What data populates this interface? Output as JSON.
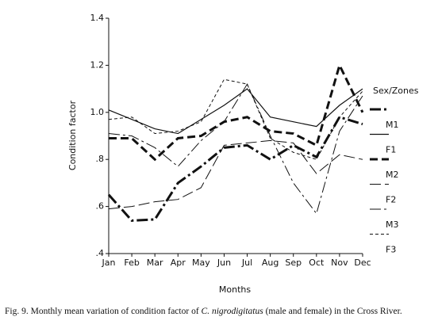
{
  "chart_data": {
    "type": "line",
    "y_label": "Condition factor",
    "x_label": "Months",
    "legend_title": "Sex/Zones",
    "legend_position": "right",
    "caption": {
      "before": "Fig. 9. Monthly mean variation of condition factor of ",
      "species": "C. nigrodigitatus",
      "after": " (male and female) in the Cross River."
    },
    "categories": [
      "Jan",
      "Feb",
      "Mar",
      "Apr",
      "May",
      "Jun",
      "Jul",
      "Aug",
      "Sep",
      "Oct",
      "Nov",
      "Dec"
    ],
    "ylim": [
      0.4,
      1.4
    ],
    "yticks": [
      {
        "value": 0.4,
        "label": ".4"
      },
      {
        "value": 0.6,
        "label": ".6"
      },
      {
        "value": 0.8,
        "label": ".8"
      },
      {
        "value": 1,
        "label": "1.0"
      },
      1.2,
      1.4
    ],
    "series": [
      {
        "name": "M1",
        "color": "#111111",
        "linestyle": "dashdot",
        "linewidth": 3,
        "values": [
          0.65,
          0.54,
          0.545,
          0.7,
          0.77,
          0.85,
          0.86,
          0.8,
          0.86,
          0.81,
          0.98,
          0.95
        ]
      },
      {
        "name": "F1",
        "color": "#111111",
        "linestyle": "solid",
        "linewidth": 1.2,
        "values": [
          1.01,
          0.97,
          0.93,
          0.91,
          0.97,
          1.03,
          1.1,
          0.98,
          0.96,
          0.94,
          1.03,
          1.1
        ]
      },
      {
        "name": "M2",
        "color": "#111111",
        "linestyle": "dash",
        "linewidth": 3,
        "values": [
          0.89,
          0.89,
          0.8,
          0.89,
          0.9,
          0.96,
          0.98,
          0.92,
          0.91,
          0.86,
          1.2,
          1.0
        ]
      },
      {
        "name": "F2",
        "color": "#111111",
        "linestyle": "longdash",
        "linewidth": 1,
        "values": [
          0.59,
          0.6,
          0.62,
          0.63,
          0.68,
          0.86,
          0.87,
          0.88,
          0.87,
          0.74,
          0.82,
          0.8
        ]
      },
      {
        "name": "M3",
        "color": "#111111",
        "linestyle": "dashdot",
        "linewidth": 1,
        "values": [
          0.91,
          0.9,
          0.85,
          0.77,
          0.88,
          0.96,
          1.12,
          0.9,
          0.7,
          0.57,
          0.92,
          1.07
        ]
      },
      {
        "name": "F3",
        "color": "#111111",
        "linestyle": "shortdash",
        "linewidth": 1,
        "values": [
          0.97,
          0.98,
          0.91,
          0.92,
          0.96,
          1.14,
          1.12,
          0.89,
          0.83,
          0.8,
          0.98,
          1.09
        ]
      }
    ]
  }
}
